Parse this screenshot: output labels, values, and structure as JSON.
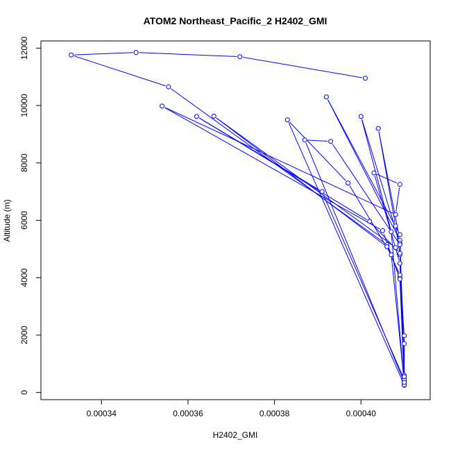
{
  "chart_data": {
    "type": "line",
    "title": "ATOM2 Northeast_Pacific_2 H2402_GMI",
    "xlabel": "H2402_GMI",
    "ylabel": "Altitude (m)",
    "xlim": [
      0.000326,
      0.000416
    ],
    "ylim": [
      -250,
      12250
    ],
    "x_ticks": [
      0.00034,
      0.00036,
      0.00038,
      0.0004
    ],
    "x_tick_labels": [
      "0.00034",
      "0.00036",
      "0.00038",
      "0.00040"
    ],
    "y_ticks": [
      0,
      2000,
      4000,
      6000,
      8000,
      10000,
      12000
    ],
    "y_tick_labels": [
      "0",
      "2000",
      "4000",
      "6000",
      "8000",
      "10000",
      "12000"
    ],
    "grid": false,
    "marker": "open-circle",
    "color": "#0000ff",
    "series": [
      {
        "points": [
          [
            0.000401,
            10950
          ],
          [
            0.000372,
            11700
          ],
          [
            0.000348,
            11850
          ],
          [
            0.000333,
            11760
          ],
          [
            0.0003555,
            10650
          ],
          [
            0.000406,
            5150
          ],
          [
            0.000409,
            4000
          ],
          [
            0.00041,
            1980
          ],
          [
            0.00041,
            600
          ],
          [
            0.00041,
            250
          ],
          [
            0.00041,
            500
          ],
          [
            0.00041,
            1700
          ],
          [
            0.000409,
            4800
          ],
          [
            0.000408,
            5800
          ],
          [
            0.000404,
            9200
          ],
          [
            0.000409,
            5300
          ],
          [
            0.000392,
            10300
          ],
          [
            0.000409,
            5500
          ],
          [
            0.00041,
            400
          ],
          [
            0.000409,
            5200
          ],
          [
            0.0004,
            9620
          ],
          [
            0.000407,
            5600
          ],
          [
            0.00041,
            300
          ],
          [
            0.000409,
            4500
          ],
          [
            0.000403,
            7650
          ],
          [
            0.000409,
            7250
          ],
          [
            0.000408,
            6200
          ],
          [
            0.000354,
            9980
          ],
          [
            0.000405,
            5640
          ],
          [
            0.000409,
            3950
          ],
          [
            0.00041,
            450
          ],
          [
            0.000391,
            7000
          ],
          [
            0.000362,
            9620
          ],
          [
            0.000402,
            5960
          ],
          [
            0.000409,
            4850
          ],
          [
            0.000408,
            5050
          ],
          [
            0.000366,
            9630
          ],
          [
            0.000406,
            5080
          ],
          [
            0.000409,
            4100
          ],
          [
            0.00041,
            260
          ],
          [
            0.000383,
            9500
          ],
          [
            0.000397,
            7300
          ],
          [
            0.000407,
            4800
          ],
          [
            0.00041,
            350
          ],
          [
            0.000387,
            8800
          ],
          [
            0.000393,
            8750
          ],
          [
            0.000409,
            5150
          ],
          [
            0.00041,
            550
          ]
        ]
      }
    ]
  }
}
